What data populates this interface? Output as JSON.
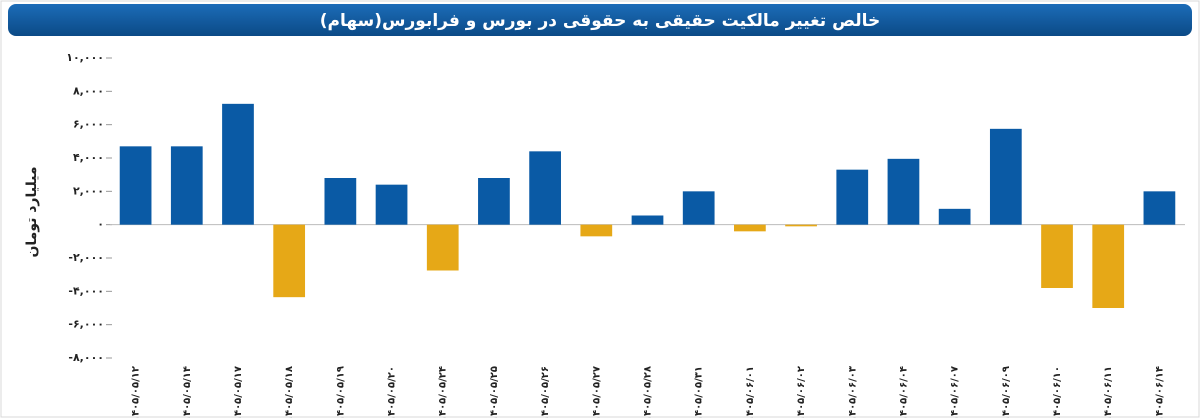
{
  "chart_data": {
    "type": "bar",
    "title": "خالص تغییر مالکیت حقیقی به حقوقی در بورس و فرابورس(سهام)",
    "y_label": "میلیارد تومان",
    "categories": [
      "۱۴۰۵/۰۵/۱۲",
      "۱۴۰۵/۰۵/۱۴",
      "۱۴۰۵/۰۵/۱۷",
      "۱۴۰۵/۰۵/۱۸",
      "۱۴۰۵/۰۵/۱۹",
      "۱۴۰۵/۰۵/۲۰",
      "۱۴۰۵/۰۵/۲۴",
      "۱۴۰۵/۰۵/۲۵",
      "۱۴۰۵/۰۵/۲۶",
      "۱۴۰۵/۰۵/۲۷",
      "۱۴۰۵/۰۵/۲۸",
      "۱۴۰۵/۰۵/۳۱",
      "۱۴۰۵/۰۶/۰۱",
      "۱۴۰۵/۰۶/۰۲",
      "۱۴۰۵/۰۶/۰۳",
      "۱۴۰۵/۰۶/۰۴",
      "۱۴۰۵/۰۶/۰۷",
      "۱۴۰۵/۰۶/۰۹",
      "۱۴۰۵/۰۶/۱۰",
      "۱۴۰۵/۰۶/۱۱",
      "۱۴۰۵/۰۶/۱۴"
    ],
    "values": [
      4700,
      4700,
      7250,
      -4350,
      2800,
      2400,
      -2750,
      2800,
      4400,
      -700,
      550,
      2000,
      -400,
      -100,
      3300,
      3950,
      950,
      5750,
      -3800,
      -5000,
      2000
    ],
    "color": "#0a5aa5",
    "negative_color": "#e6a817",
    "ylim": [
      -8000,
      10000
    ],
    "yticks": [
      {
        "value": 10000,
        "label": "۱۰,۰۰۰"
      },
      {
        "value": 8000,
        "label": "۸,۰۰۰"
      },
      {
        "value": 6000,
        "label": "۶,۰۰۰"
      },
      {
        "value": 4000,
        "label": "۴,۰۰۰"
      },
      {
        "value": 2000,
        "label": "۲,۰۰۰"
      },
      {
        "value": 0,
        "label": "۰"
      },
      {
        "value": -2000,
        "label": "-۲,۰۰۰"
      },
      {
        "value": -4000,
        "label": "-۴,۰۰۰"
      },
      {
        "value": -6000,
        "label": "-۶,۰۰۰"
      },
      {
        "value": -8000,
        "label": "-۸,۰۰۰"
      }
    ],
    "grid": false
  }
}
